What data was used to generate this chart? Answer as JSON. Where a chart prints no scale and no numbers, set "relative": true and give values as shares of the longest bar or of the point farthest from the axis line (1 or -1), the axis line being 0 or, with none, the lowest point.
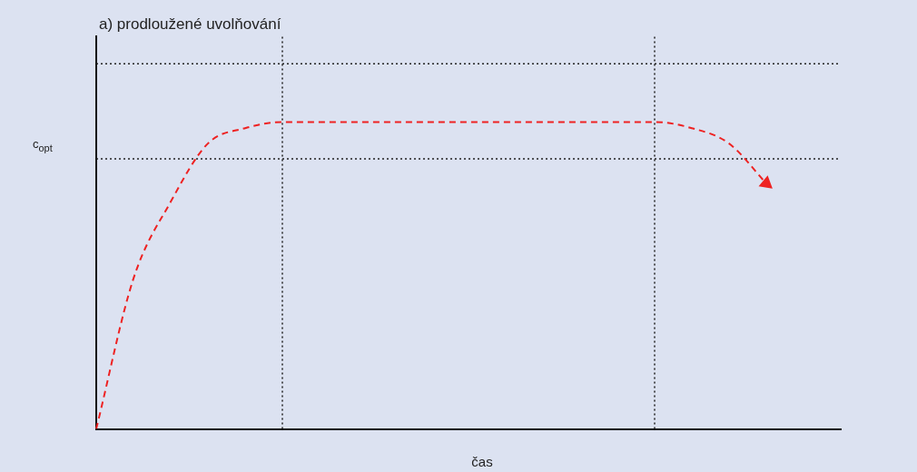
{
  "chart_data": {
    "type": "line",
    "title": "a) prodloužené uvolňování",
    "xlabel": "čas",
    "ylabel": "c$_{opt}$",
    "relative": true,
    "categories": [
      null,
      null,
      null,
      null,
      null,
      null,
      null,
      null,
      null,
      null,
      null,
      null,
      null,
      null,
      null,
      null,
      null,
      null,
      null,
      null,
      null
    ],
    "series": [
      {
        "color": "#ee2222",
        "values": [
          0,
          0.49,
          0.74,
          0.93,
          0.98,
          1,
          1,
          1,
          1,
          1,
          1,
          1,
          1,
          1,
          1,
          1,
          0.98,
          0.93,
          0.8,
          null,
          null
        ]
      }
    ],
    "line_style": "dashed",
    "grid": false,
    "legend": false,
    "ref_lines": [
      {
        "axis": "y",
        "value": 1.19,
        "color": "#222222",
        "line_style": "dotted"
      },
      {
        "axis": "y",
        "value": 0.88,
        "color": "#222222",
        "line_style": "dotted"
      }
    ]
  }
}
